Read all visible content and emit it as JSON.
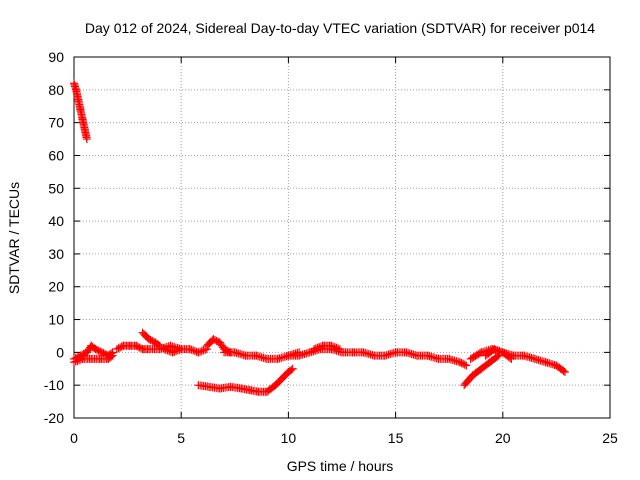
{
  "chart_data": {
    "type": "scatter",
    "title": "Day 012 of 2024, Sidereal Day-to-day VTEC variation (SDTVAR) for receiver p014",
    "xlabel": "GPS time / hours",
    "ylabel": "SDTVAR / TECUs",
    "xlim": [
      0,
      25
    ],
    "ylim": [
      -20,
      90
    ],
    "xticks": [
      0,
      5,
      10,
      15,
      20,
      25
    ],
    "yticks": [
      -20,
      -10,
      0,
      10,
      20,
      30,
      40,
      50,
      60,
      70,
      80,
      90
    ],
    "grid": true,
    "marker": "+",
    "color": "#ff0000",
    "series": [
      {
        "name": "tracks",
        "segments": [
          {
            "x": [
              0.0,
              0.1,
              0.2,
              0.3,
              0.4,
              0.5,
              0.6
            ],
            "y": [
              82,
              80,
              77,
              74,
              71,
              68,
              65
            ]
          },
          {
            "x": [
              0.0,
              0.3,
              0.6,
              0.8,
              1.0,
              1.3,
              1.6,
              1.8
            ],
            "y": [
              -2,
              -1,
              0,
              2,
              1,
              0,
              -1,
              0
            ]
          },
          {
            "x": [
              0.0,
              0.4,
              0.8,
              1.2,
              1.6,
              1.8
            ],
            "y": [
              -3,
              -2,
              -2,
              -2,
              -2,
              -1
            ]
          },
          {
            "x": [
              2.0,
              2.3,
              2.6,
              2.9,
              3.2,
              3.5,
              4.0,
              4.5,
              5.0
            ],
            "y": [
              1,
              2,
              2,
              2,
              1,
              1,
              1,
              2,
              1
            ]
          },
          {
            "x": [
              3.2,
              3.5,
              3.8,
              4.0
            ],
            "y": [
              6,
              4,
              3,
              2
            ]
          },
          {
            "x": [
              4.2,
              4.6,
              5.0,
              5.4,
              5.8,
              6.2
            ],
            "y": [
              1,
              0,
              1,
              1,
              0,
              1
            ]
          },
          {
            "x": [
              5.8,
              6.3,
              6.8,
              7.3,
              7.8,
              8.2,
              8.6,
              9.0,
              9.4,
              9.7,
              10.0,
              10.2
            ],
            "y": [
              -10,
              -10.5,
              -11,
              -10.5,
              -11,
              -11.5,
              -12,
              -12,
              -10,
              -8,
              -6,
              -5
            ]
          },
          {
            "x": [
              6.2,
              6.5,
              6.8,
              7.0,
              7.3
            ],
            "y": [
              2,
              4,
              3,
              1,
              0
            ]
          },
          {
            "x": [
              7.0,
              7.5,
              8.0,
              8.5,
              9.0,
              9.5,
              10.0,
              10.5
            ],
            "y": [
              0,
              0,
              -1,
              -1,
              -2,
              -2,
              -1,
              0
            ]
          },
          {
            "x": [
              10.0,
              10.5,
              11.0,
              11.5,
              12.0,
              12.5,
              13.0,
              13.5,
              14.0,
              14.5,
              15.0
            ],
            "y": [
              -1,
              -1,
              0,
              1,
              1,
              0,
              0,
              0,
              -1,
              -1,
              0
            ]
          },
          {
            "x": [
              11.2,
              11.6,
              12.0,
              12.4
            ],
            "y": [
              1,
              2,
              2,
              1
            ]
          },
          {
            "x": [
              15.0,
              15.5,
              16.0,
              16.5,
              17.0,
              17.5,
              18.0,
              18.3
            ],
            "y": [
              0,
              0,
              -1,
              -1,
              -2,
              -2,
              -3,
              -4
            ]
          },
          {
            "x": [
              18.2,
              18.6,
              19.0,
              19.4,
              19.8
            ],
            "y": [
              -10,
              -7,
              -5,
              -3,
              -1
            ]
          },
          {
            "x": [
              18.5,
              19.0,
              19.5,
              20.0,
              20.5,
              21.0,
              21.5,
              22.0,
              22.5,
              22.9
            ],
            "y": [
              -2,
              0,
              1,
              0,
              -1,
              -1,
              -2,
              -3,
              -4,
              -6
            ]
          },
          {
            "x": [
              19.2,
              19.6,
              20.0,
              20.4
            ],
            "y": [
              -1,
              1,
              0,
              -2
            ]
          }
        ]
      }
    ]
  }
}
